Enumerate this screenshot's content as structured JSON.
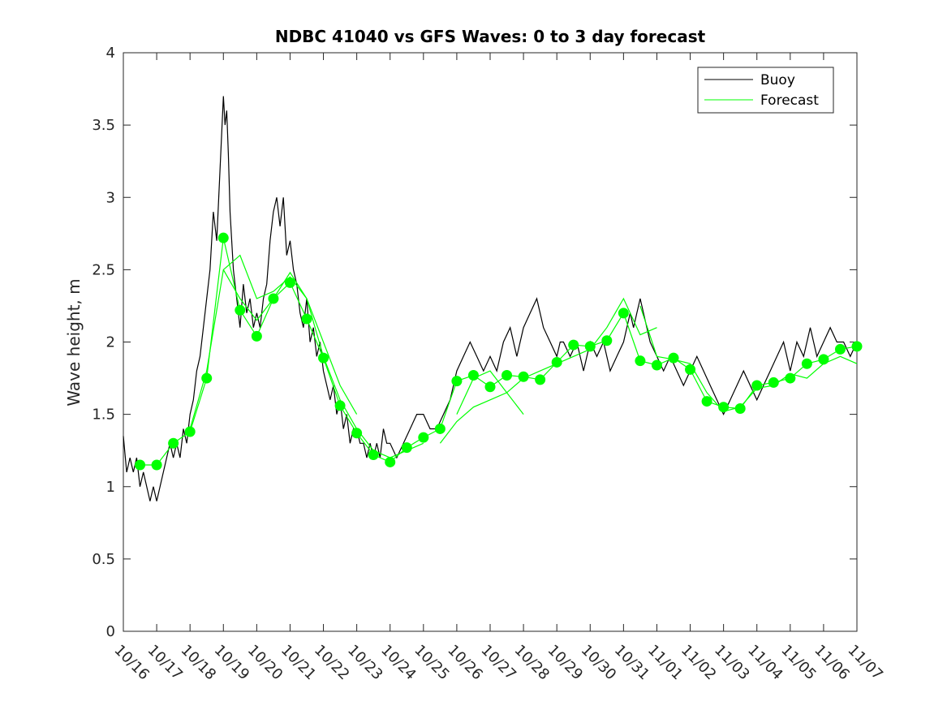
{
  "chart_data": {
    "type": "line",
    "title": "NDBC 41040 vs GFS Waves: 0 to 3 day forecast",
    "xlabel": "",
    "ylabel": "Wave height, m",
    "xlim": [
      0,
      22
    ],
    "ylim": [
      0,
      4
    ],
    "yticks": [
      0,
      0.5,
      1,
      1.5,
      2,
      2.5,
      3,
      3.5,
      4
    ],
    "ytick_labels": [
      "0",
      "0.5",
      "1",
      "1.5",
      "2",
      "2.5",
      "3",
      "3.5",
      "4"
    ],
    "xtick_labels": [
      "10/16",
      "10/17",
      "10/18",
      "10/19",
      "10/20",
      "10/21",
      "10/22",
      "10/23",
      "10/24",
      "10/25",
      "10/26",
      "10/27",
      "10/28",
      "10/29",
      "10/30",
      "10/31",
      "11/01",
      "11/02",
      "11/03",
      "11/04",
      "11/05",
      "11/06",
      "11/07"
    ],
    "legend": {
      "position": "top-right",
      "entries": [
        "Buoy",
        "Forecast"
      ]
    },
    "colors": {
      "buoy": "#000000",
      "forecast": "#00ff00",
      "axis": "#262626"
    },
    "series": [
      {
        "name": "Buoy",
        "x": [
          0,
          0.1,
          0.2,
          0.3,
          0.4,
          0.5,
          0.6,
          0.7,
          0.8,
          0.9,
          1.0,
          1.1,
          1.2,
          1.3,
          1.4,
          1.5,
          1.6,
          1.7,
          1.8,
          1.9,
          2.0,
          2.1,
          2.2,
          2.3,
          2.4,
          2.5,
          2.6,
          2.7,
          2.8,
          2.9,
          3.0,
          3.05,
          3.1,
          3.15,
          3.2,
          3.3,
          3.4,
          3.5,
          3.6,
          3.7,
          3.8,
          3.9,
          4.0,
          4.1,
          4.2,
          4.3,
          4.4,
          4.5,
          4.6,
          4.7,
          4.8,
          4.9,
          5.0,
          5.1,
          5.2,
          5.3,
          5.4,
          5.5,
          5.6,
          5.7,
          5.8,
          5.9,
          6.0,
          6.1,
          6.2,
          6.3,
          6.4,
          6.5,
          6.6,
          6.7,
          6.8,
          6.9,
          7.0,
          7.1,
          7.2,
          7.3,
          7.4,
          7.5,
          7.6,
          7.7,
          7.8,
          7.9,
          8.0,
          8.2,
          8.4,
          8.6,
          8.8,
          9.0,
          9.2,
          9.4,
          9.6,
          9.8,
          10.0,
          10.2,
          10.4,
          10.6,
          10.8,
          11.0,
          11.2,
          11.4,
          11.6,
          11.8,
          12.0,
          12.2,
          12.4,
          12.6,
          12.8,
          13.0,
          13.1,
          13.2,
          13.4,
          13.6,
          13.8,
          14.0,
          14.2,
          14.4,
          14.6,
          14.8,
          15.0,
          15.2,
          15.3,
          15.4,
          15.5,
          15.6,
          15.7,
          15.8,
          16.0,
          16.2,
          16.4,
          16.6,
          16.8,
          17.0,
          17.2,
          17.4,
          17.6,
          17.8,
          18.0,
          18.2,
          18.4,
          18.6,
          18.8,
          19.0,
          19.2,
          19.4,
          19.6,
          19.8,
          20.0,
          20.2,
          20.4,
          20.6,
          20.8,
          21.0,
          21.2,
          21.4,
          21.6,
          21.8,
          22.0
        ],
        "y": [
          1.35,
          1.1,
          1.2,
          1.1,
          1.2,
          1.0,
          1.1,
          1.0,
          0.9,
          1.0,
          0.9,
          1.0,
          1.1,
          1.2,
          1.3,
          1.2,
          1.3,
          1.2,
          1.4,
          1.3,
          1.5,
          1.6,
          1.8,
          1.9,
          2.1,
          2.3,
          2.5,
          2.9,
          2.7,
          3.2,
          3.7,
          3.5,
          3.6,
          3.3,
          2.9,
          2.5,
          2.3,
          2.1,
          2.4,
          2.2,
          2.3,
          2.1,
          2.2,
          2.1,
          2.3,
          2.4,
          2.7,
          2.9,
          3.0,
          2.8,
          3.0,
          2.6,
          2.7,
          2.5,
          2.4,
          2.2,
          2.1,
          2.3,
          2.0,
          2.1,
          1.9,
          2.0,
          1.8,
          1.7,
          1.6,
          1.7,
          1.5,
          1.6,
          1.4,
          1.5,
          1.3,
          1.4,
          1.4,
          1.3,
          1.3,
          1.2,
          1.3,
          1.2,
          1.3,
          1.2,
          1.4,
          1.3,
          1.3,
          1.2,
          1.3,
          1.4,
          1.5,
          1.5,
          1.4,
          1.4,
          1.5,
          1.6,
          1.8,
          1.9,
          2.0,
          1.9,
          1.8,
          1.9,
          1.8,
          2.0,
          2.1,
          1.9,
          2.1,
          2.2,
          2.3,
          2.1,
          2.0,
          1.9,
          2.0,
          2.0,
          1.9,
          2.0,
          1.8,
          2.0,
          1.9,
          2.0,
          1.8,
          1.9,
          2.0,
          2.2,
          2.1,
          2.2,
          2.3,
          2.2,
          2.1,
          2.0,
          1.9,
          1.8,
          1.9,
          1.8,
          1.7,
          1.8,
          1.9,
          1.8,
          1.7,
          1.6,
          1.5,
          1.6,
          1.7,
          1.8,
          1.7,
          1.6,
          1.7,
          1.8,
          1.9,
          2.0,
          1.8,
          2.0,
          1.9,
          2.1,
          1.9,
          2.0,
          2.1,
          2.0,
          2.0,
          1.9,
          2.0
        ]
      },
      {
        "name": "Forecast",
        "runs": [
          {
            "x": [
              0.5,
              1.0,
              1.5,
              2.0,
              2.5,
              3.0,
              3.5,
              4.0,
              4.5,
              5.0,
              5.5,
              6.0,
              6.5,
              7.0,
              7.5,
              8.0,
              8.5,
              9.0,
              9.5,
              10.0,
              10.5,
              11.0,
              11.5,
              12.0,
              12.5,
              13.0,
              13.5,
              14.0,
              14.5,
              15.0,
              15.5,
              16.0,
              16.5,
              17.0,
              17.5,
              18.0,
              18.5,
              19.0,
              19.5,
              20.0,
              20.5,
              21.0,
              21.5,
              22.0
            ],
            "y": [
              1.15,
              1.15,
              1.3,
              1.38,
              1.75,
              2.72,
              2.22,
              2.04,
              2.3,
              2.41,
              2.16,
              1.89,
              1.56,
              1.37,
              1.22,
              1.17,
              1.27,
              1.34,
              1.4,
              1.73,
              1.77,
              1.69,
              1.77,
              1.76,
              1.74,
              1.86,
              1.98,
              1.97,
              2.01,
              2.2,
              1.87,
              1.84,
              1.89,
              1.81,
              1.59,
              1.55,
              1.54,
              1.7,
              1.72,
              1.75,
              1.85,
              1.88,
              1.95,
              1.97
            ]
          },
          {
            "x": [
              2.0,
              2.5,
              3.0,
              3.5,
              4.0,
              4.5,
              5.0,
              5.5,
              6.0,
              6.5,
              7.0
            ],
            "y": [
              1.4,
              1.8,
              2.5,
              2.6,
              2.3,
              2.35,
              2.45,
              2.3,
              2.0,
              1.7,
              1.5
            ]
          },
          {
            "x": [
              3.0,
              3.5,
              4.0,
              4.5,
              5.0,
              5.5,
              6.0,
              6.5,
              7.0,
              7.5,
              8.0,
              8.5,
              9.0
            ],
            "y": [
              2.5,
              2.3,
              2.15,
              2.3,
              2.48,
              2.3,
              1.9,
              1.6,
              1.4,
              1.25,
              1.2,
              1.25,
              1.3
            ]
          },
          {
            "x": [
              9.5,
              10.0,
              10.5,
              11.0,
              11.5,
              12.0,
              12.5,
              13.0,
              13.5,
              14.0,
              14.5,
              15.0,
              15.5,
              16.0
            ],
            "y": [
              1.3,
              1.45,
              1.55,
              1.6,
              1.65,
              1.75,
              1.8,
              1.85,
              1.9,
              1.95,
              2.1,
              2.3,
              2.05,
              2.1
            ]
          },
          {
            "x": [
              10.0,
              10.5,
              11.0,
              11.5,
              12.0
            ],
            "y": [
              1.5,
              1.75,
              1.8,
              1.65,
              1.5
            ]
          },
          {
            "x": [
              15.5,
              16.0,
              16.5,
              17.0,
              17.5,
              18.0,
              18.5,
              19.0,
              19.5,
              20.0,
              20.5,
              21.0,
              21.5,
              22.0
            ],
            "y": [
              2.25,
              1.9,
              1.88,
              1.85,
              1.65,
              1.52,
              1.55,
              1.68,
              1.7,
              1.78,
              1.75,
              1.85,
              1.9,
              1.85
            ]
          }
        ]
      }
    ]
  }
}
